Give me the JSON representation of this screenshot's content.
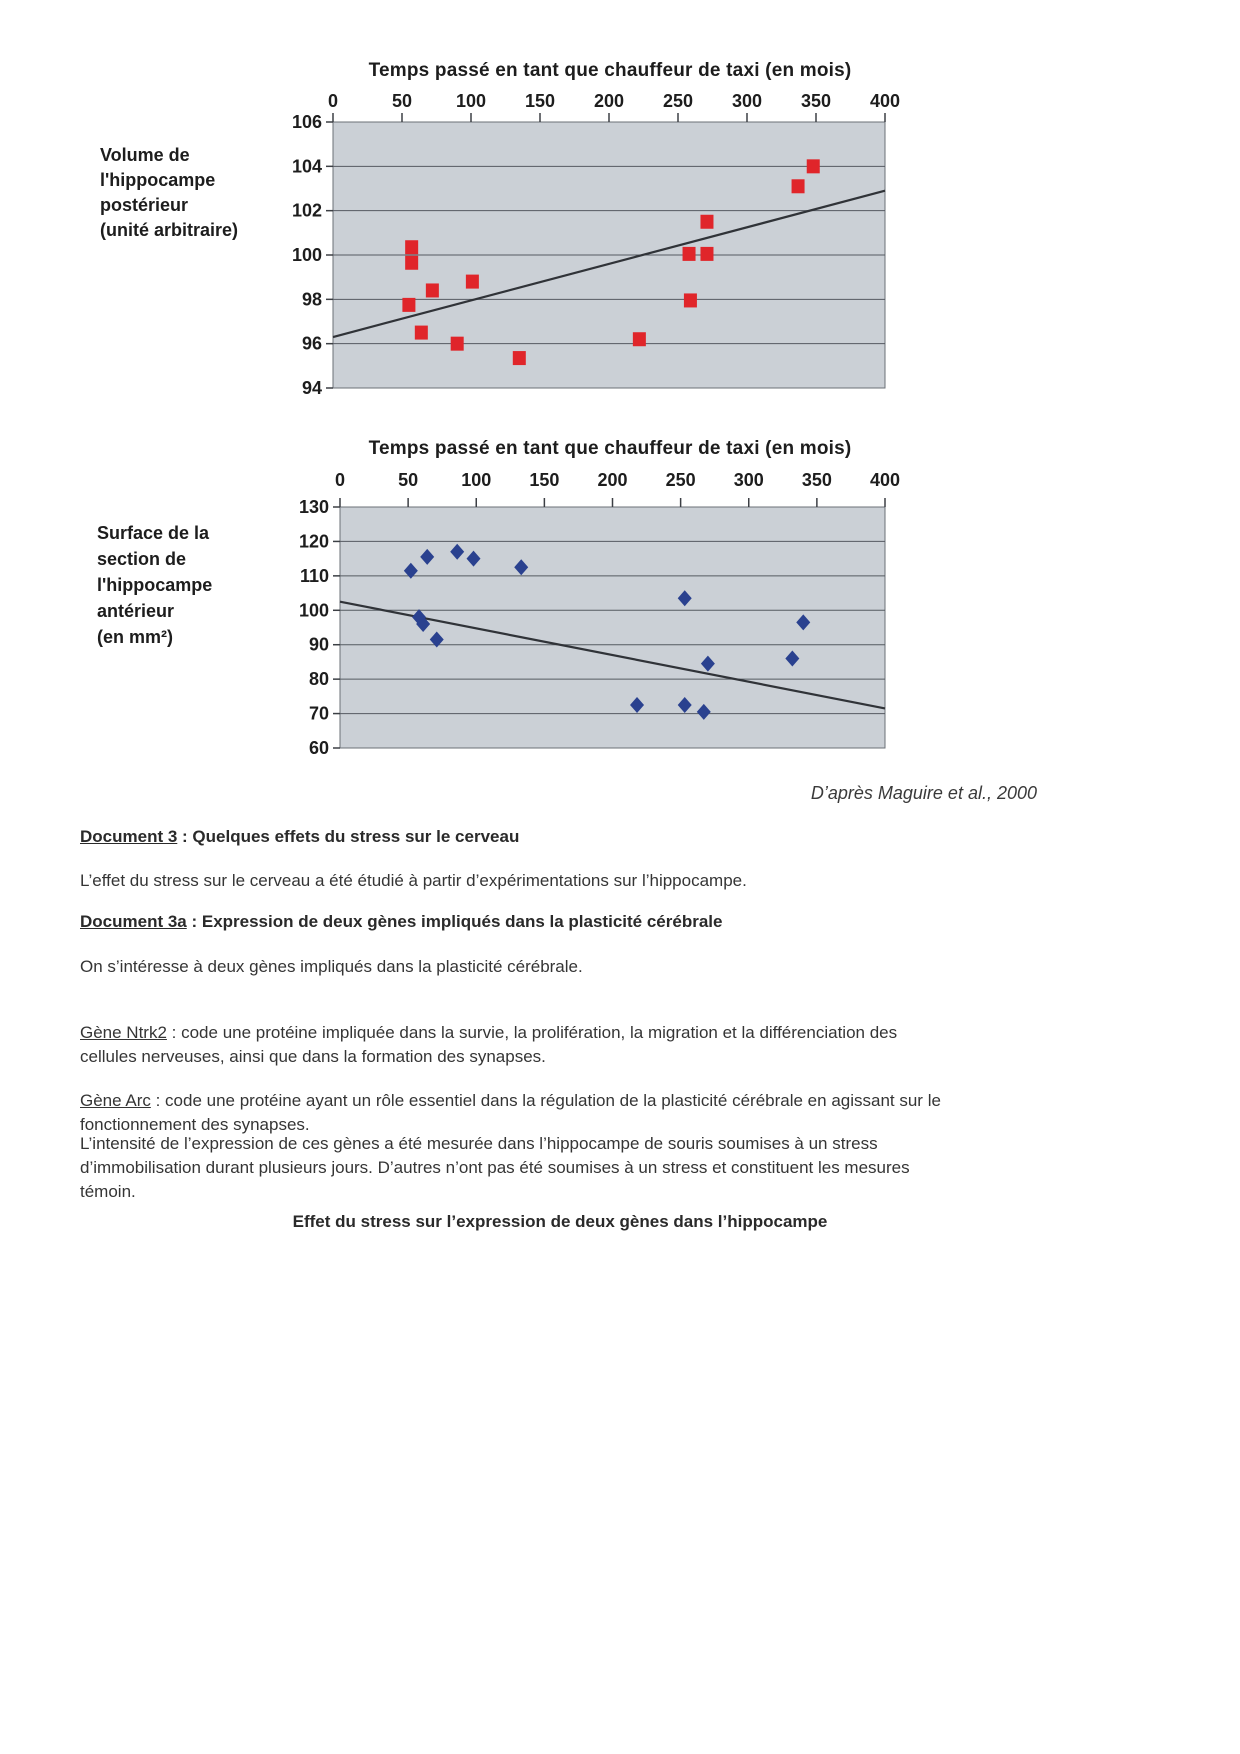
{
  "attribution": "D’après Maguire et al., 2000",
  "sections": {
    "doc3_label": "Document 3",
    "doc3_rest": " : Quelques effets du stress sur le cerveau",
    "p1": "L’effet du stress sur le cerveau a été étudié à partir d’expérimentations sur l’hippocampe.",
    "doc3a_label": "Document 3a",
    "doc3a_rest": " : Expression de deux gènes impliqués dans la plasticité cérébrale",
    "p2": "On s’intéresse à deux gènes impliqués dans la plasticité cérébrale.",
    "gene_ntrk2_label": "Gène Ntrk2",
    "gene_ntrk2_rest": " : code une protéine impliquée dans la survie, la prolifération, la migration et la différenciation des\ncellules nerveuses, ainsi que dans la formation des synapses.",
    "gene_arc_label": "Gène Arc",
    "gene_arc_rest": " : code une protéine ayant un rôle essentiel dans la régulation de la plasticité cérébrale en agissant sur le\nfonctionnement des synapses.",
    "p3": "L’intensité de l’expression de ces gènes a été mesurée dans l’hippocampe de souris soumises à un stress\nd’immobilisation durant plusieurs jours. D’autres n’ont pas été soumises à un stress et constituent les mesures\ntémoin.",
    "figure_title": "Effet du stress sur l’expression de deux gènes dans l’hippocampe"
  },
  "chart_data": [
    {
      "type": "scatter",
      "title": "Temps passé en tant que chauffeur de taxi (en mois)",
      "xlabel": "Temps passé en tant que chauffeur de taxi (en mois)",
      "ylabel": "Volume de\nl'hippocampe\npostérieur\n(unité arbitraire)",
      "xlim": [
        0,
        400
      ],
      "ylim": [
        94,
        106
      ],
      "xticks": [
        0,
        50,
        100,
        150,
        200,
        250,
        300,
        350,
        400
      ],
      "yticks": [
        94,
        96,
        98,
        100,
        102,
        104,
        106
      ],
      "grid": true,
      "legend": "none",
      "marker": "square",
      "marker_color": "#e0252a",
      "plot_bg": "#cbd0d6",
      "points": [
        [
          57,
          100.35
        ],
        [
          57,
          99.65
        ],
        [
          55,
          97.75
        ],
        [
          64,
          96.5
        ],
        [
          72,
          98.4
        ],
        [
          90,
          96.0
        ],
        [
          101,
          98.8
        ],
        [
          135,
          95.35
        ],
        [
          222,
          96.2
        ],
        [
          258,
          100.05
        ],
        [
          271,
          100.05
        ],
        [
          271,
          101.5
        ],
        [
          259,
          97.95
        ],
        [
          337,
          103.1
        ],
        [
          348,
          104.0
        ]
      ],
      "trend_line": [
        [
          0,
          96.3
        ],
        [
          400,
          102.9
        ]
      ]
    },
    {
      "type": "scatter",
      "title": "Temps passé en tant que chauffeur de taxi (en mois)",
      "xlabel": "Temps passé en tant que chauffeur de taxi (en mois)",
      "ylabel": "Surface de la\nsection de\nl'hippocampe\nantérieur\n(en mm²)",
      "xlim": [
        0,
        400
      ],
      "ylim": [
        60,
        130
      ],
      "xticks": [
        0,
        50,
        100,
        150,
        200,
        250,
        300,
        350,
        400
      ],
      "yticks": [
        60,
        70,
        80,
        90,
        100,
        110,
        120,
        130
      ],
      "grid": true,
      "legend": "none",
      "marker": "diamond",
      "marker_color": "#2a418f",
      "plot_bg": "#cbd0d6",
      "points": [
        [
          52,
          111.5
        ],
        [
          64,
          115.5
        ],
        [
          86,
          117
        ],
        [
          98,
          115
        ],
        [
          133,
          112.5
        ],
        [
          58,
          98
        ],
        [
          61,
          96
        ],
        [
          71,
          91.5
        ],
        [
          253,
          103.5
        ],
        [
          270,
          84.5
        ],
        [
          340,
          96.5
        ],
        [
          332,
          86
        ],
        [
          218,
          72.5
        ],
        [
          253,
          72.5
        ],
        [
          267,
          70.5
        ]
      ],
      "trend_line": [
        [
          0,
          102.5
        ],
        [
          400,
          71.5
        ]
      ]
    }
  ]
}
